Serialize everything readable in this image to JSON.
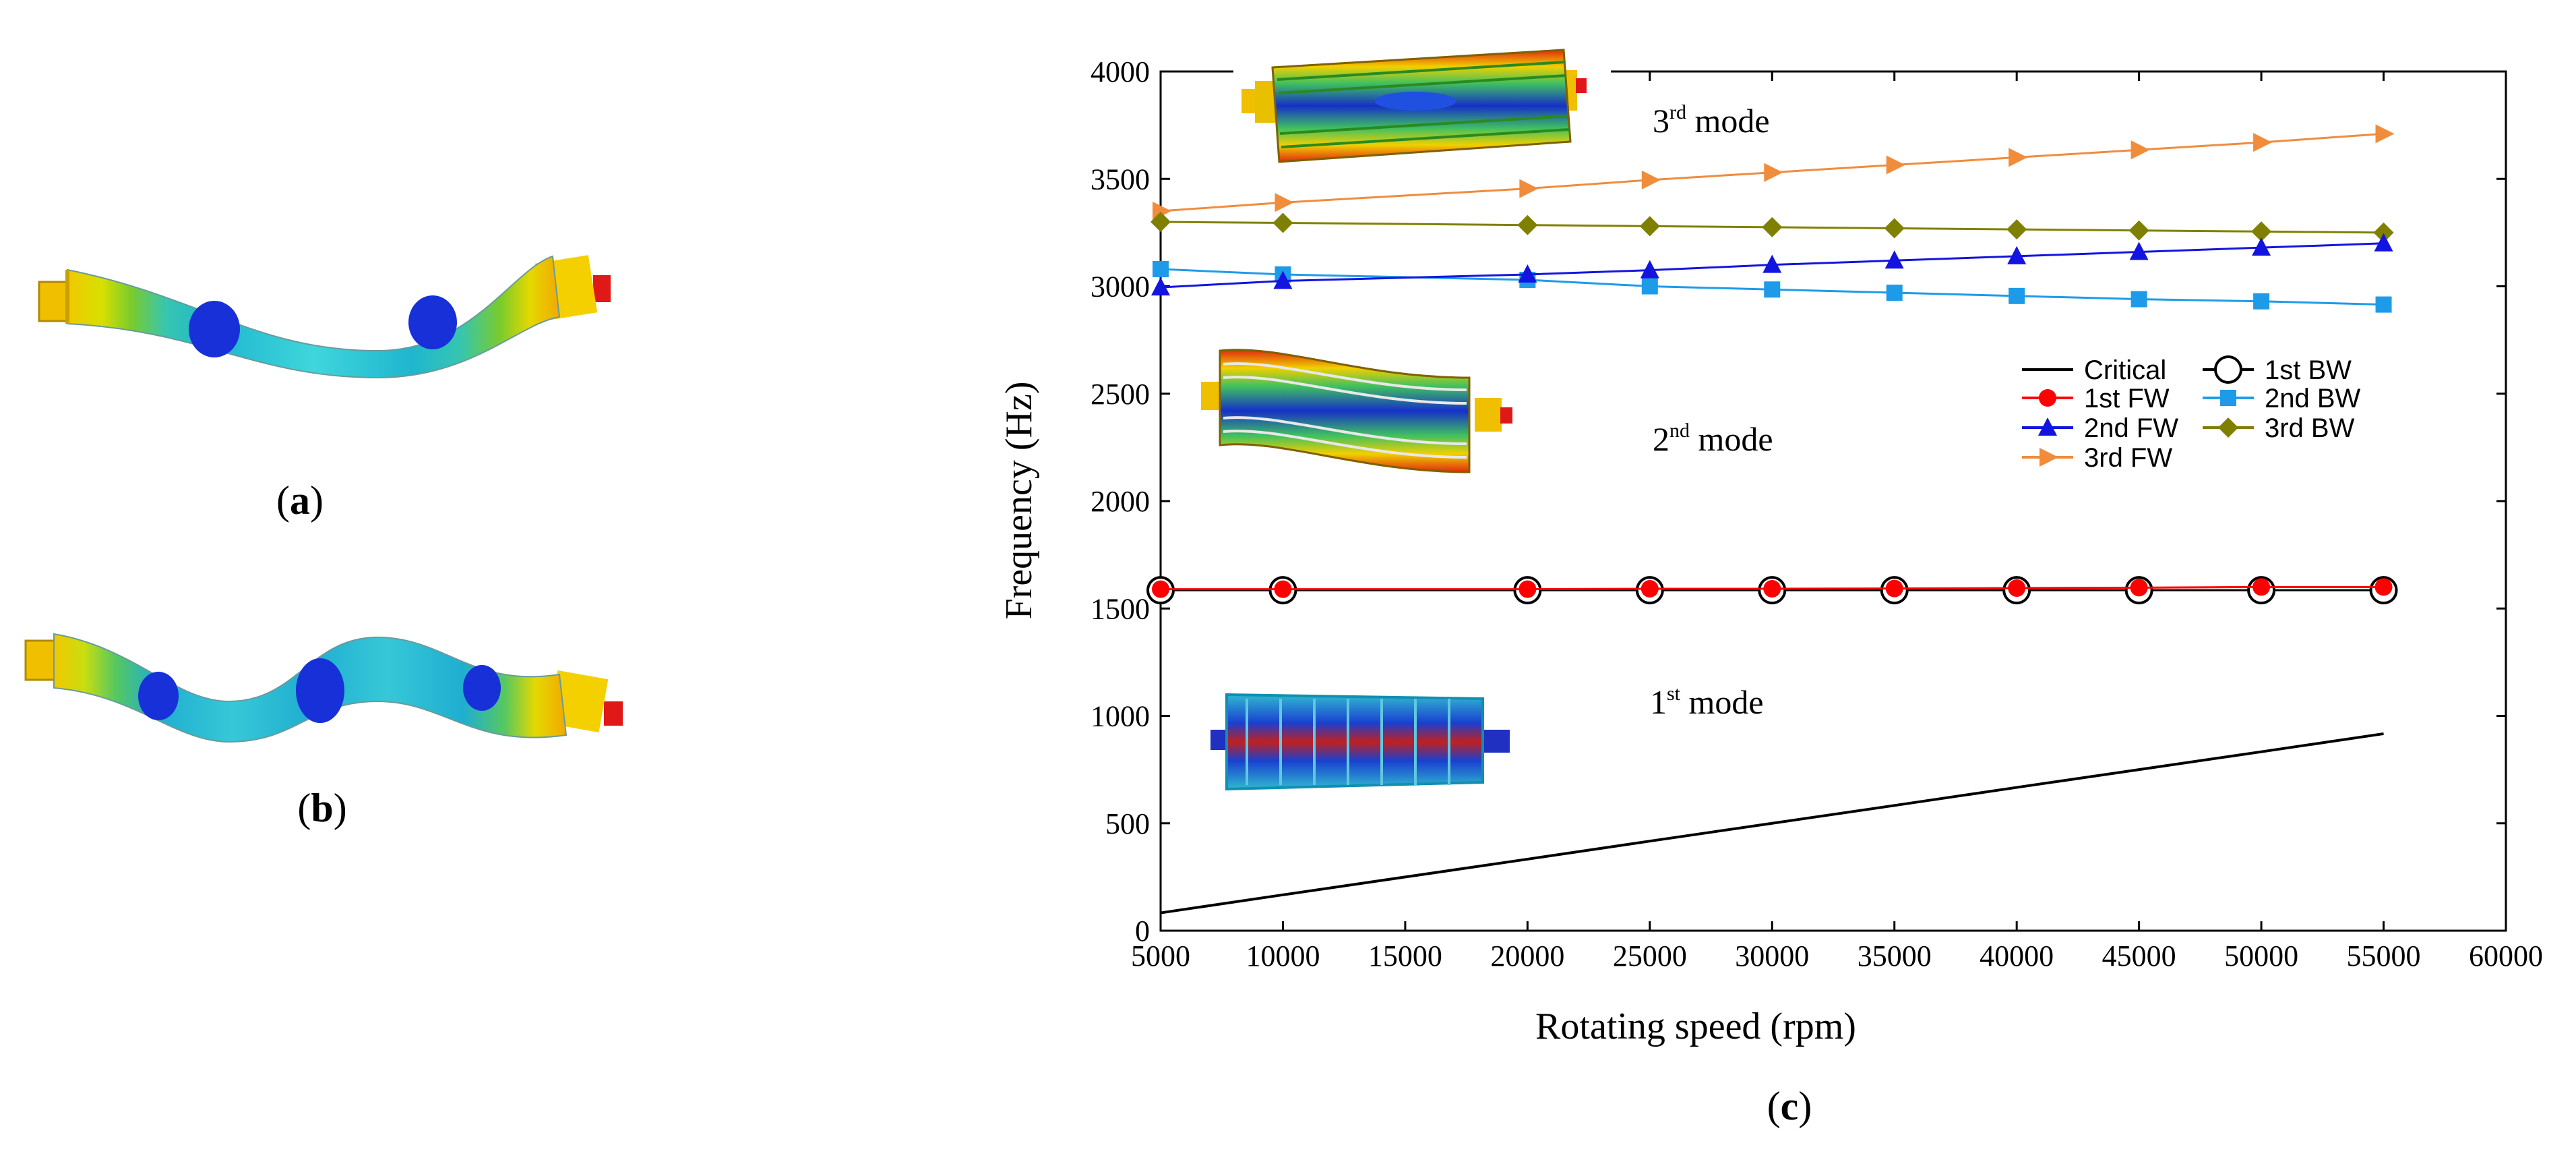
{
  "panels": {
    "a": {
      "label_open": "(",
      "letter": "a",
      "label_close": ")"
    },
    "b": {
      "label_open": "(",
      "letter": "b",
      "label_close": ")"
    },
    "c": {
      "label_open": "(",
      "letter": "c",
      "label_close": ")"
    }
  },
  "chart_data": {
    "type": "line",
    "xlabel": "Rotating speed (rpm)",
    "ylabel": "Frequency (Hz)",
    "xlim": [
      5000,
      60000
    ],
    "ylim": [
      0,
      4000
    ],
    "xticks": [
      5000,
      10000,
      15000,
      20000,
      25000,
      30000,
      35000,
      40000,
      45000,
      50000,
      55000,
      60000
    ],
    "yticks": [
      0,
      500,
      1000,
      1500,
      2000,
      2500,
      3000,
      3500,
      4000
    ],
    "legend_position": "right",
    "x": [
      5000,
      10000,
      20000,
      25000,
      30000,
      35000,
      40000,
      45000,
      50000,
      55000
    ],
    "series": [
      {
        "name": "Critical",
        "marker": "none",
        "color": "#000000",
        "values": [
          83,
          167,
          333,
          417,
          500,
          583,
          667,
          750,
          833,
          917
        ]
      },
      {
        "name": "1st BW",
        "marker": "circle-open",
        "color": "#000000",
        "values": [
          1585,
          1585,
          1585,
          1585,
          1585,
          1585,
          1585,
          1585,
          1585,
          1585
        ]
      },
      {
        "name": "1st FW",
        "marker": "circle",
        "color": "#ff0000",
        "values": [
          1590,
          1590,
          1590,
          1592,
          1592,
          1593,
          1595,
          1597,
          1600,
          1600
        ]
      },
      {
        "name": "2nd BW",
        "marker": "square",
        "color": "#1e9be8",
        "values": [
          3080,
          3055,
          3030,
          3000,
          2985,
          2970,
          2955,
          2940,
          2930,
          2915
        ]
      },
      {
        "name": "2nd FW",
        "marker": "triangle",
        "color": "#1414e0",
        "values": [
          2995,
          3025,
          3055,
          3075,
          3100,
          3120,
          3140,
          3160,
          3180,
          3200
        ]
      },
      {
        "name": "3rd BW",
        "marker": "diamond",
        "color": "#808000",
        "values": [
          3300,
          3295,
          3285,
          3280,
          3275,
          3270,
          3265,
          3260,
          3255,
          3250
        ]
      },
      {
        "name": "3rd FW",
        "marker": "triangle-right",
        "color": "#f08c3c",
        "values": [
          3350,
          3390,
          3455,
          3495,
          3530,
          3565,
          3600,
          3635,
          3670,
          3710
        ]
      }
    ],
    "annotations": [
      {
        "id": "mode3",
        "prefix": "3",
        "sup": "rd",
        "suffix": " mode"
      },
      {
        "id": "mode2",
        "prefix": "2",
        "sup": "nd",
        "suffix": " mode"
      },
      {
        "id": "mode1",
        "prefix": "1",
        "sup": "st",
        "suffix": " mode"
      }
    ]
  }
}
